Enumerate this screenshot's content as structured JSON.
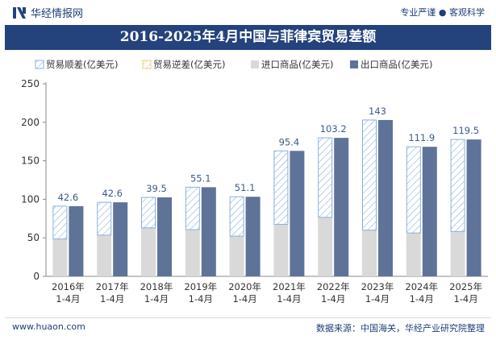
{
  "header": {
    "brand": "华经情报网",
    "tagline": "专业严谨 ● 客观科学"
  },
  "title": "2016-2025年4月中国与菲律宾贸易差额",
  "footer": {
    "url": "www.huaon.com",
    "source": "数据来源：中国海关，华经产业研究院整理"
  },
  "colors": {
    "brand": "#24427c",
    "export": "#5f7399",
    "import": "#d9d9d9",
    "surplus_stroke": "#8ab0d8",
    "deficit_stroke": "#e6cf7c"
  },
  "chart_data": {
    "type": "bar",
    "categories": [
      "2016年\n1-4月",
      "2017年\n1-4月",
      "2018年\n1-4月",
      "2019年\n1-4月",
      "2020年\n1-4月",
      "2021年\n1-4月",
      "2022年\n1-4月",
      "2023年\n1-4月",
      "2024年\n1-4月",
      "2025年\n1-4月"
    ],
    "series": [
      {
        "name": "贸易顺差(亿美元)",
        "values": [
          42.6,
          42.6,
          39.5,
          55.1,
          51.1,
          95.4,
          103.2,
          143,
          111.9,
          119.5
        ],
        "labels": [
          "42.6",
          "42.6",
          "39.5",
          "55.1",
          "51.1",
          "95.4",
          "103.2",
          "143",
          "111.9",
          "119.5"
        ]
      },
      {
        "name": "贸易逆差(亿美元)",
        "values": [
          0,
          0,
          0,
          0,
          0,
          0,
          0,
          0,
          0,
          0
        ]
      },
      {
        "name": "进口商品(亿美元)",
        "values": [
          48.5,
          53.5,
          63.0,
          60.6,
          52.2,
          67.5,
          76.6,
          60.0,
          56.3,
          58.2
        ]
      },
      {
        "name": "出口商品(亿美元)",
        "values": [
          91.1,
          96.1,
          102.5,
          115.7,
          103.3,
          162.9,
          179.8,
          203.0,
          168.2,
          177.7
        ]
      }
    ],
    "ylim": [
      0,
      250
    ],
    "yticks": [
      0,
      50,
      100,
      150,
      200,
      250
    ],
    "grid": false,
    "legend": "top"
  }
}
